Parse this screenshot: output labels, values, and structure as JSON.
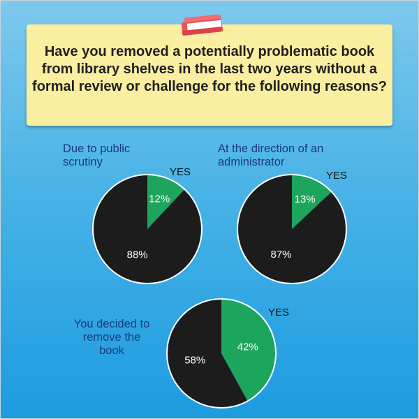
{
  "question": "Have you removed a potentially problematic book from library shelves in the last two years without a formal review or challenge for the following reasons?",
  "icons": {
    "header": "book-icon"
  },
  "colors": {
    "yes": "#1da55e",
    "no": "#1c1c1c",
    "background": "#3aabe4",
    "question_box": "#faeea0",
    "label_text": "#1b3a7c"
  },
  "chart_data": [
    {
      "type": "pie",
      "title": "Due to public scrutiny",
      "legend_label": "YES",
      "slices": [
        {
          "label": "YES",
          "value": 12,
          "display": "12%"
        },
        {
          "label": "",
          "value": 88,
          "display": "88%"
        }
      ]
    },
    {
      "type": "pie",
      "title": "At the direction of an administrator",
      "legend_label": "YES",
      "slices": [
        {
          "label": "YES",
          "value": 13,
          "display": "13%"
        },
        {
          "label": "",
          "value": 87,
          "display": "87%"
        }
      ]
    },
    {
      "type": "pie",
      "title": "You decided to remove the book",
      "legend_label": "YES",
      "slices": [
        {
          "label": "YES",
          "value": 42,
          "display": "42%"
        },
        {
          "label": "",
          "value": 58,
          "display": "58%"
        }
      ]
    }
  ]
}
